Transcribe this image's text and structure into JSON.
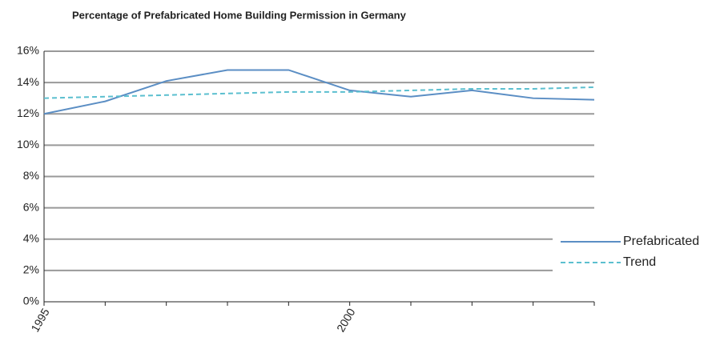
{
  "chart_data": {
    "type": "line",
    "title": "Percentage of Prefabricated Home Building Permission in Germany",
    "categories": [
      "1995",
      null,
      null,
      null,
      null,
      "2000",
      null,
      null,
      null,
      null
    ],
    "series": [
      {
        "name": "Prefabricated",
        "color": "#5b8ec4",
        "dash": false,
        "values": [
          12.0,
          12.8,
          14.1,
          14.8,
          14.8,
          13.5,
          13.1,
          13.5,
          13.0,
          12.9
        ]
      },
      {
        "name": "Trend",
        "color": "#5bbfcf",
        "dash": true,
        "values": [
          13.0,
          13.1,
          13.2,
          13.3,
          13.4,
          13.4,
          13.5,
          13.6,
          13.6,
          13.7
        ]
      }
    ],
    "ylim": [
      0,
      16
    ],
    "yticks": [
      {
        "value": 0,
        "label": "0%"
      },
      {
        "value": 2,
        "label": "2%"
      },
      {
        "value": 4,
        "label": "4%"
      },
      {
        "value": 6,
        "label": "6%"
      },
      {
        "value": 8,
        "label": "8%"
      },
      {
        "value": 10,
        "label": "10%"
      },
      {
        "value": 12,
        "label": "12%"
      },
      {
        "value": 14,
        "label": "14%"
      },
      {
        "value": 16,
        "label": "16%"
      }
    ],
    "grid": true,
    "legend": "right"
  }
}
